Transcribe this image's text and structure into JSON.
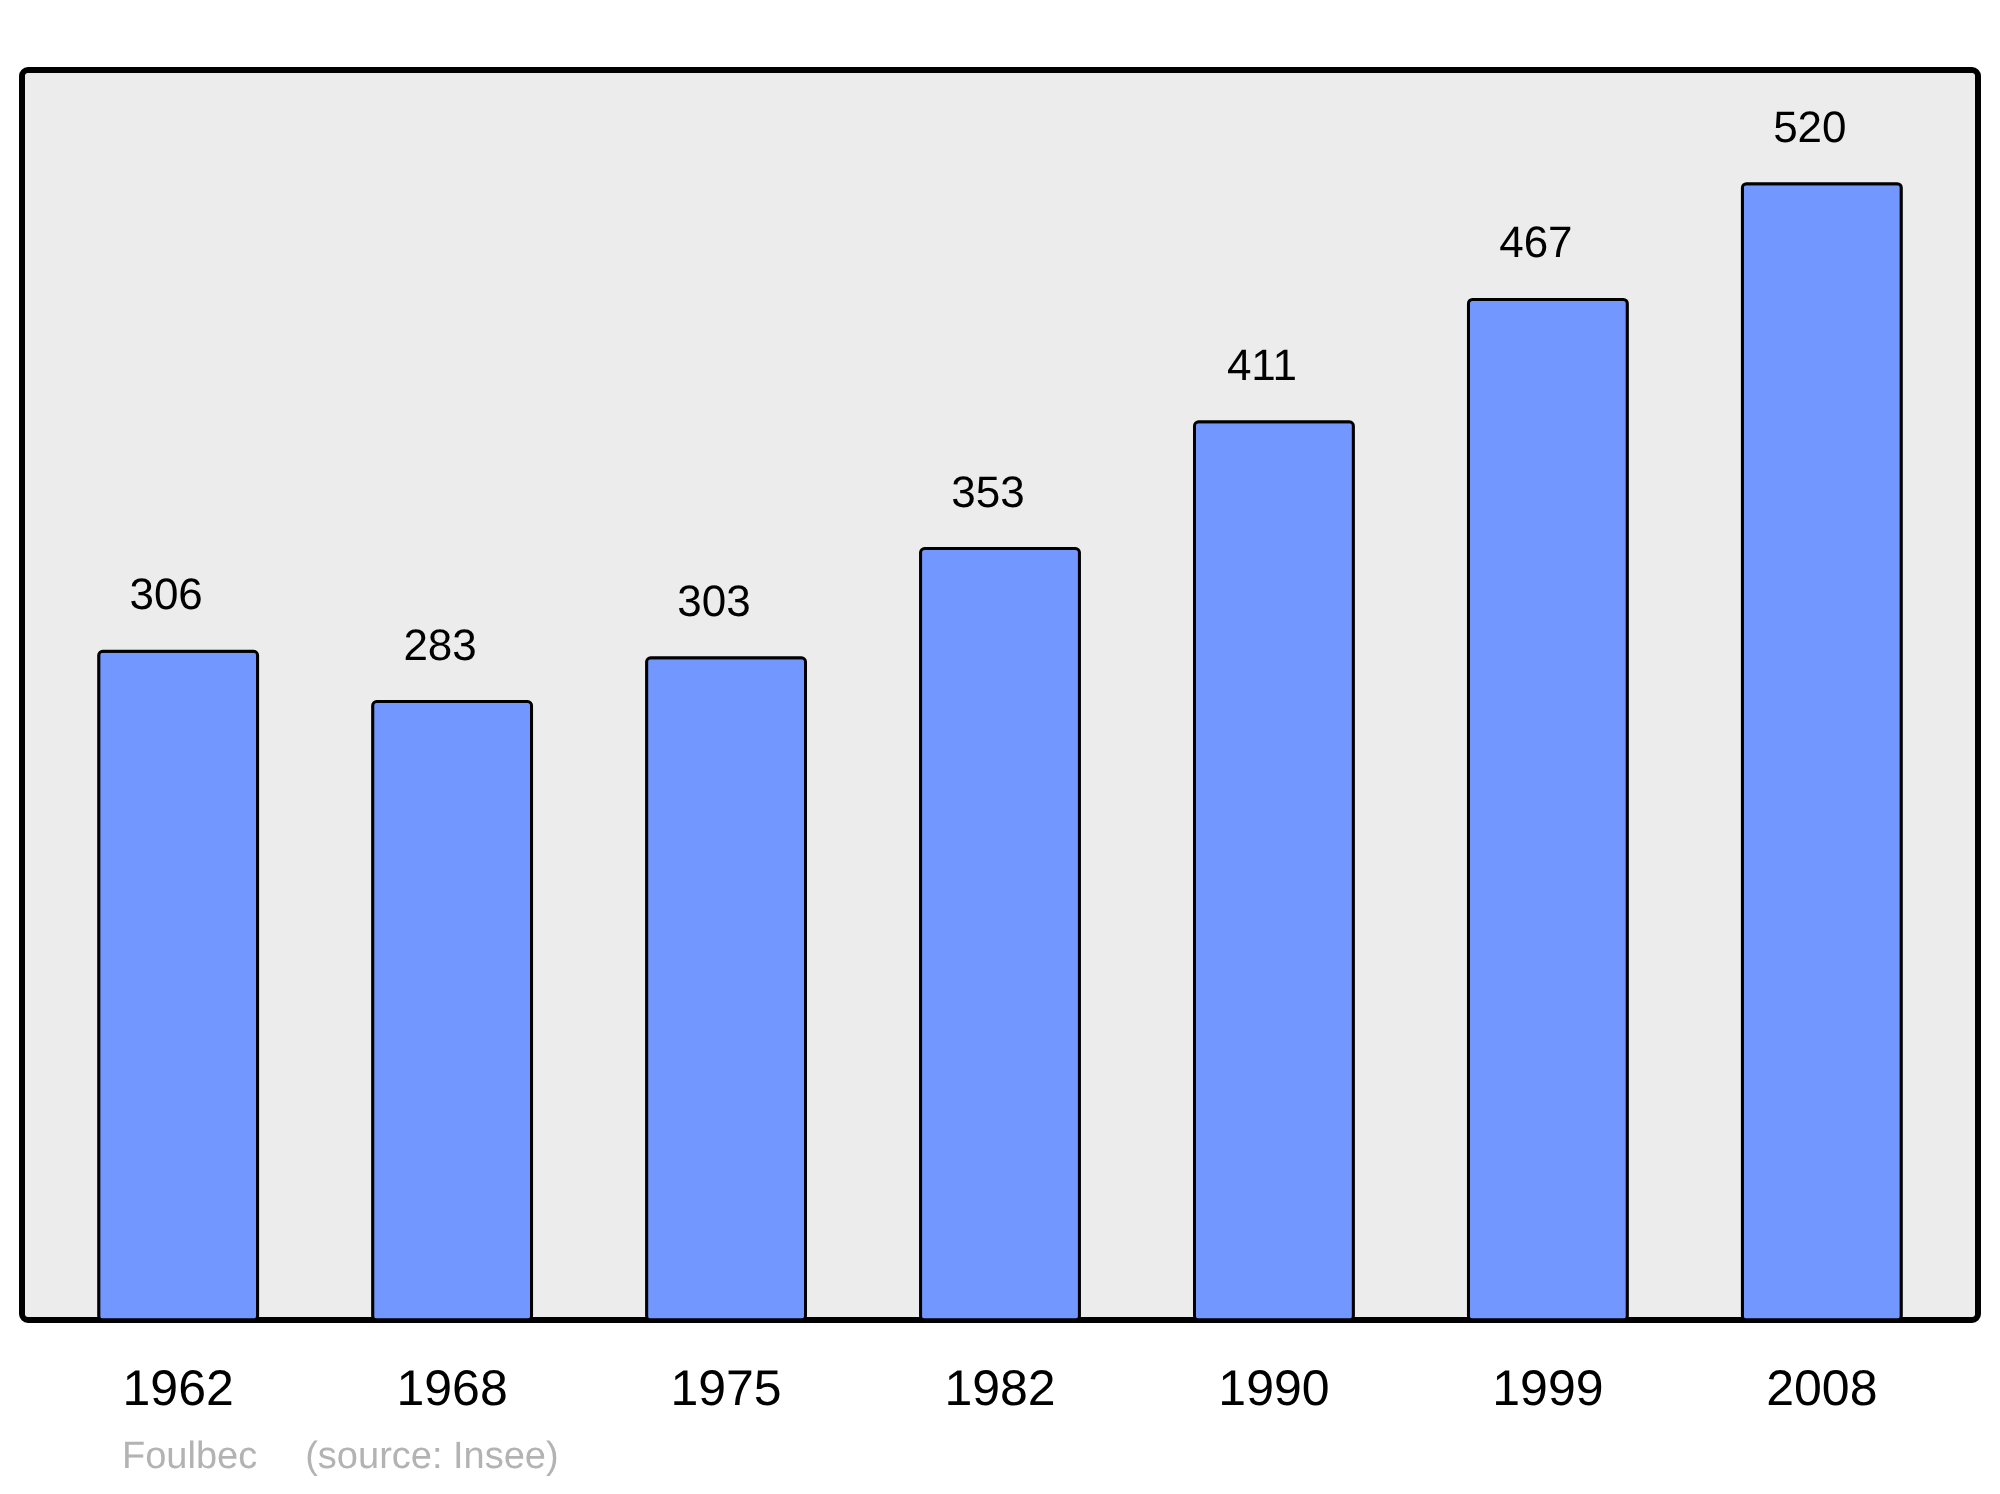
{
  "chart_data": {
    "type": "bar",
    "categories": [
      "1962",
      "1968",
      "1975",
      "1982",
      "1990",
      "1999",
      "2008"
    ],
    "values": [
      306,
      283,
      303,
      353,
      411,
      467,
      520
    ],
    "color": "#7298ff",
    "data_labels": true,
    "annotations": [
      "Foulbec",
      "(source: Insee)"
    ]
  }
}
